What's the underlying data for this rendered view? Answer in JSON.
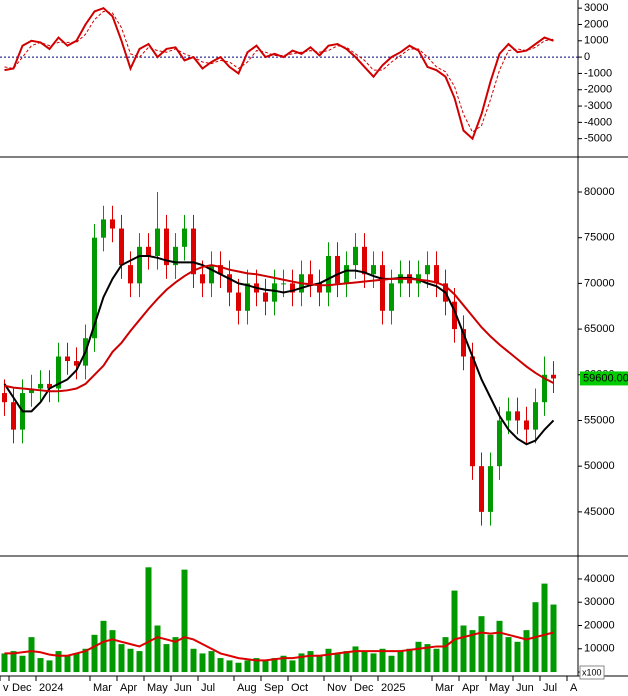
{
  "chart_data": [
    {
      "type": "line",
      "ylim": [
        -6000,
        3500
      ],
      "yticks": [
        -5000,
        -4000,
        -3000,
        -2000,
        -1000,
        0,
        1000,
        2000,
        3000
      ],
      "zero_line": true,
      "series": [
        {
          "color": "#d00000",
          "values": [
            -800,
            -700,
            700,
            1000,
            900,
            500,
            1200,
            700,
            1000,
            2000,
            2800,
            3000,
            2500,
            1000,
            -700,
            500,
            800,
            0,
            500,
            600,
            -200,
            0,
            -700,
            -300,
            0,
            -600,
            -1000,
            300,
            700,
            0,
            200,
            0,
            400,
            200,
            600,
            100,
            700,
            800,
            500,
            0,
            -600,
            -1200,
            -500,
            0,
            300,
            700,
            400,
            -600,
            -800,
            -1200,
            -2500,
            -4500,
            -5000,
            -3500,
            -1500,
            200,
            800,
            300,
            400,
            800,
            1200,
            1000,
            null,
            null
          ]
        },
        {
          "color": "#d00000",
          "dashed": true,
          "values": [
            -600,
            -700,
            0,
            700,
            900,
            700,
            900,
            900,
            900,
            1400,
            2300,
            2800,
            2700,
            1800,
            200,
            0,
            600,
            400,
            300,
            500,
            200,
            0,
            -300,
            -400,
            -200,
            -300,
            -700,
            -300,
            400,
            300,
            100,
            100,
            200,
            300,
            400,
            300,
            400,
            700,
            600,
            200,
            -200,
            -800,
            -800,
            -300,
            100,
            500,
            500,
            0,
            -600,
            -900,
            -1800,
            -3500,
            -4600,
            -4200,
            -2600,
            -800,
            400,
            500,
            400,
            600,
            1000,
            1100,
            null,
            null
          ]
        }
      ]
    },
    {
      "type": "candlestick",
      "ylim": [
        40500,
        83500
      ],
      "yticks": [
        45000,
        50000,
        55000,
        60000,
        65000,
        70000,
        75000,
        80000
      ],
      "up_color": "#009900",
      "down_color": "#dd0000",
      "open": [
        58000,
        57000,
        54000,
        58000,
        58500,
        59000,
        58500,
        62000,
        61500,
        61000,
        64000,
        75000,
        77000,
        76000,
        72000,
        70000,
        74000,
        73000,
        76000,
        72000,
        74000,
        76000,
        71000,
        70000,
        72000,
        71000,
        69000,
        67000,
        70000,
        69000,
        68000,
        70000,
        70000,
        69000,
        71000,
        70000,
        69000,
        73000,
        70000,
        72000,
        74000,
        71000,
        72000,
        67000,
        70000,
        71000,
        70000,
        71000,
        72000,
        70000,
        68000,
        65000,
        62000,
        50000,
        45000,
        50000,
        55000,
        56000,
        55000,
        54000,
        57000,
        60000,
        null,
        null
      ],
      "high": [
        59500,
        58500,
        59500,
        60000,
        60500,
        60500,
        63500,
        63500,
        63000,
        65500,
        76500,
        78500,
        78500,
        77500,
        73500,
        75500,
        75500,
        80000,
        77500,
        75500,
        77500,
        77500,
        72500,
        73500,
        73500,
        72500,
        70500,
        71500,
        71500,
        70500,
        71500,
        71500,
        71500,
        72500,
        72500,
        71500,
        74500,
        74500,
        73500,
        75500,
        75500,
        73500,
        73500,
        71500,
        72500,
        72500,
        72500,
        73500,
        73500,
        71500,
        69500,
        66500,
        63500,
        51500,
        51500,
        56500,
        57500,
        57500,
        56500,
        58500,
        62000,
        61500,
        null,
        null
      ],
      "low": [
        55500,
        52500,
        52500,
        56500,
        57000,
        57000,
        57000,
        60000,
        59500,
        59500,
        62500,
        73500,
        74500,
        70500,
        68500,
        68500,
        71500,
        71500,
        70500,
        70500,
        72500,
        69500,
        68500,
        68500,
        69500,
        67500,
        65500,
        65500,
        67500,
        66500,
        66500,
        68500,
        67500,
        67500,
        68500,
        67500,
        67500,
        68500,
        68500,
        70500,
        69500,
        69500,
        65500,
        65500,
        68500,
        68500,
        68500,
        69500,
        68500,
        66500,
        63500,
        60500,
        48500,
        43500,
        43500,
        48500,
        53500,
        53500,
        52500,
        52500,
        55500,
        58000,
        null,
        null
      ],
      "close": [
        57000,
        54000,
        58000,
        58500,
        59000,
        58500,
        62000,
        61500,
        61000,
        64000,
        75000,
        77000,
        76000,
        72000,
        70000,
        74000,
        73000,
        76000,
        72000,
        74000,
        76000,
        71000,
        70000,
        72000,
        71000,
        69000,
        67000,
        70000,
        69000,
        68000,
        70000,
        70000,
        69000,
        71000,
        70000,
        69000,
        73000,
        70000,
        72000,
        74000,
        71000,
        72000,
        67000,
        70000,
        71000,
        70000,
        71000,
        72000,
        70000,
        68000,
        65000,
        62000,
        50000,
        45000,
        50000,
        55000,
        56000,
        55000,
        54000,
        57000,
        60000,
        59600,
        null,
        null
      ],
      "series": [
        {
          "color": "#000000",
          "values": [
            59000,
            57500,
            56000,
            56000,
            57000,
            58500,
            59000,
            59500,
            60500,
            62500,
            65500,
            68500,
            70500,
            72000,
            72500,
            73000,
            73000,
            72800,
            72500,
            72300,
            72300,
            72300,
            72000,
            71500,
            71000,
            70500,
            70000,
            69800,
            69500,
            69300,
            69200,
            69000,
            69200,
            69500,
            69800,
            70000,
            70500,
            71000,
            71400,
            71400,
            71200,
            70800,
            70500,
            70500,
            70600,
            70600,
            70400,
            70000,
            69700,
            69000,
            67000,
            64500,
            62000,
            59500,
            57500,
            55500,
            54000,
            53000,
            52400,
            52800,
            54000,
            55000,
            null,
            null
          ]
        },
        {
          "color": "#cc0000",
          "values": [
            58800,
            58600,
            58500,
            58400,
            58300,
            58200,
            58200,
            58300,
            58500,
            59000,
            60000,
            61000,
            62500,
            63500,
            64800,
            66000,
            67200,
            68300,
            69300,
            70100,
            70800,
            71400,
            71800,
            72000,
            71800,
            71500,
            71300,
            71100,
            71000,
            70800,
            70600,
            70400,
            70200,
            70000,
            69900,
            69800,
            69800,
            69900,
            70000,
            70100,
            70200,
            70300,
            70400,
            70500,
            70500,
            70500,
            70400,
            70300,
            70100,
            69700,
            68800,
            67600,
            66400,
            65200,
            64200,
            63300,
            62500,
            61700,
            60900,
            60200,
            59600,
            59100,
            null,
            null
          ]
        }
      ],
      "last_price": {
        "value": 59600,
        "label": "59600.00"
      },
      "last_price_color": "#00cc00"
    },
    {
      "type": "bar",
      "ylim": [
        -1700,
        49000
      ],
      "yticks": [
        0,
        10000,
        20000,
        30000,
        40000
      ],
      "unit_label": "x100",
      "color": "#009900",
      "values": [
        8000,
        9000,
        7000,
        15000,
        6000,
        5000,
        9000,
        7000,
        8000,
        10000,
        16000,
        22000,
        18000,
        12000,
        10000,
        9000,
        45000,
        20000,
        12000,
        15000,
        44000,
        10000,
        8000,
        9000,
        6000,
        5000,
        4000,
        5000,
        6000,
        5000,
        6000,
        7000,
        5000,
        8000,
        9000,
        7000,
        10000,
        8000,
        9000,
        11000,
        9000,
        8000,
        10000,
        7000,
        9000,
        10000,
        13000,
        12000,
        10000,
        15000,
        35000,
        20000,
        18000,
        24000,
        16000,
        22000,
        15000,
        13000,
        18000,
        30000,
        38000,
        29000,
        null,
        null
      ],
      "series": [
        {
          "color": "#dd0000",
          "values": [
            8000,
            8000,
            8500,
            9000,
            8500,
            7500,
            7000,
            7000,
            8000,
            9000,
            11000,
            13000,
            14000,
            13000,
            12000,
            11000,
            13000,
            15000,
            14000,
            13000,
            15000,
            14000,
            12000,
            10000,
            8000,
            7000,
            6000,
            5500,
            5000,
            5000,
            5500,
            6000,
            6000,
            6500,
            7000,
            7000,
            7500,
            8000,
            8500,
            9000,
            9000,
            9000,
            9000,
            9000,
            9000,
            9500,
            10000,
            10500,
            11000,
            11000,
            14000,
            15000,
            16000,
            17000,
            16500,
            17000,
            16000,
            15000,
            14000,
            15000,
            16000,
            17000,
            null,
            null
          ]
        }
      ],
      "categories": [
        "v",
        "Dec",
        null,
        null,
        "2024",
        null,
        null,
        null,
        null,
        null,
        "Mar",
        null,
        null,
        "Apr",
        null,
        null,
        "May",
        null,
        null,
        "Jun",
        null,
        null,
        "Jul",
        null,
        null,
        null,
        "Aug",
        null,
        null,
        "Sep",
        null,
        null,
        "Oct",
        null,
        null,
        null,
        "Nov",
        null,
        null,
        "Dec",
        null,
        null,
        "2025",
        null,
        null,
        null,
        null,
        null,
        "Mar",
        null,
        null,
        "Apr",
        null,
        null,
        "May",
        null,
        null,
        "Jun",
        null,
        null,
        "Jul",
        null,
        null,
        "A"
      ]
    }
  ]
}
